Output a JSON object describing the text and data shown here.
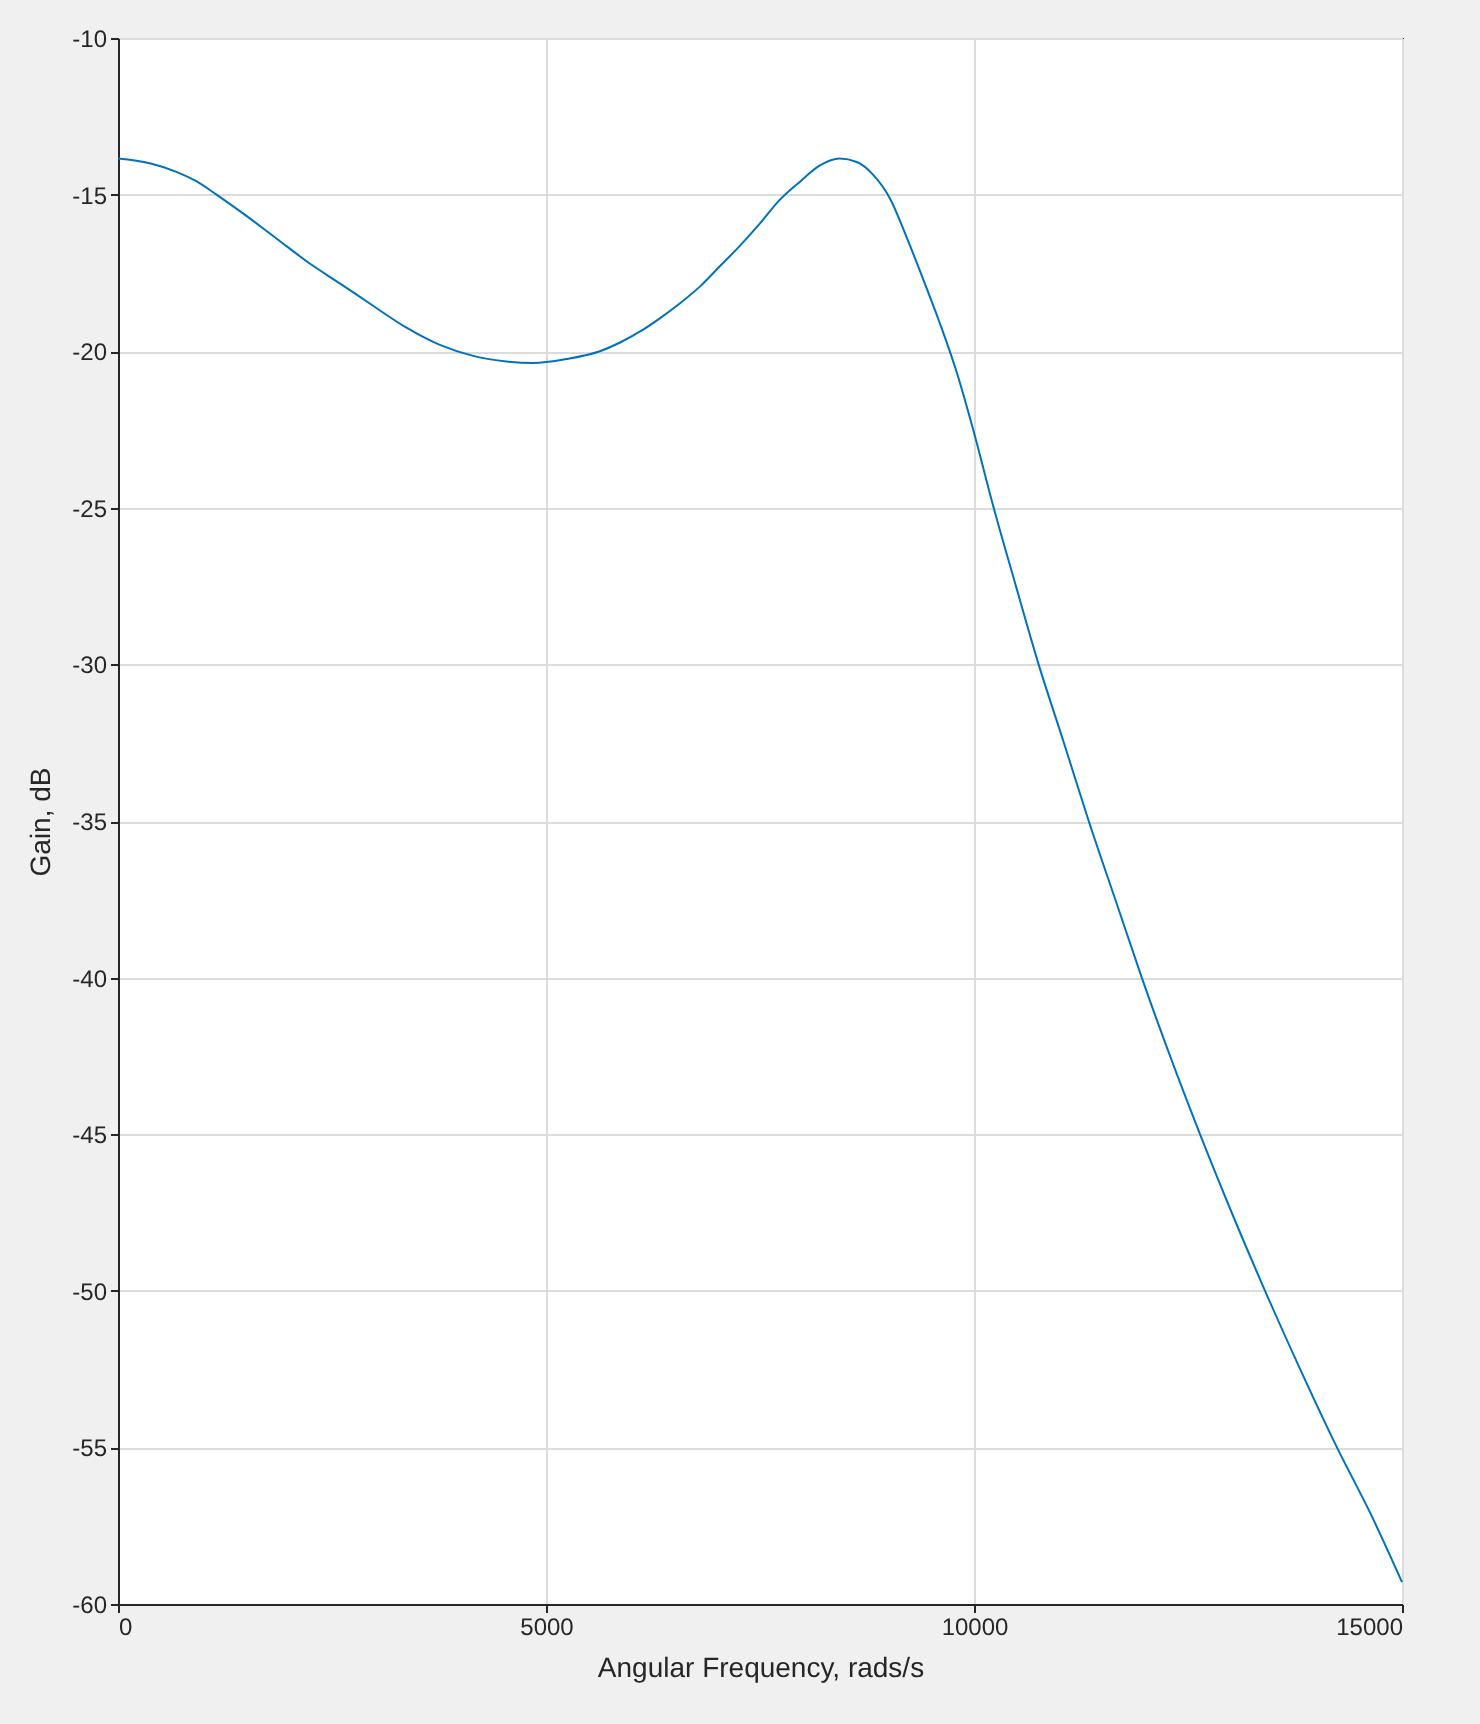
{
  "chart_data": {
    "type": "line",
    "xlabel": "Angular Frequency, rads/s",
    "ylabel": "Gain, dB",
    "x": [
      0,
      370,
      690,
      920,
      1150,
      1460,
      1850,
      2240,
      2600,
      2980,
      3370,
      3760,
      4150,
      4540,
      4850,
      5240,
      5630,
      5860,
      6100,
      6330,
      6570,
      6800,
      7030,
      7270,
      7500,
      7730,
      7970,
      8200,
      8430,
      8630,
      8820,
      9020,
      9210,
      9410,
      9600,
      9800,
      9990,
      10230,
      10490,
      10755,
      11050,
      11340,
      11650,
      11960,
      12640,
      13010,
      13400,
      13810,
      14240,
      14630,
      15000
    ],
    "series": [
      {
        "color": "#0072bd",
        "values": [
          -13.85,
          -14.0,
          -14.28,
          -14.58,
          -15.0,
          -15.6,
          -16.4,
          -17.2,
          -17.85,
          -18.55,
          -19.25,
          -19.8,
          -20.15,
          -20.33,
          -20.38,
          -20.25,
          -20.0,
          -19.73,
          -19.37,
          -18.95,
          -18.46,
          -17.93,
          -17.29,
          -16.62,
          -15.92,
          -15.17,
          -14.58,
          -14.07,
          -13.85,
          -13.96,
          -14.36,
          -15.13,
          -16.34,
          -17.73,
          -19.1,
          -20.69,
          -22.5,
          -25.0,
          -27.5,
          -30.0,
          -32.5,
          -35.0,
          -37.5,
          -40.0,
          -45.0,
          -47.5,
          -50.0,
          -52.5,
          -55.0,
          -57.1,
          -59.3
        ]
      }
    ],
    "xlim": [
      0,
      15000
    ],
    "ylim": [
      -60,
      -10
    ],
    "xticks": [
      0,
      5000,
      10000,
      15000
    ],
    "yticks": [
      -60,
      -55,
      -50,
      -45,
      -40,
      -35,
      -30,
      -25,
      -20,
      -15,
      -10
    ],
    "grid": true,
    "marker": "none",
    "line_style": "solid"
  }
}
